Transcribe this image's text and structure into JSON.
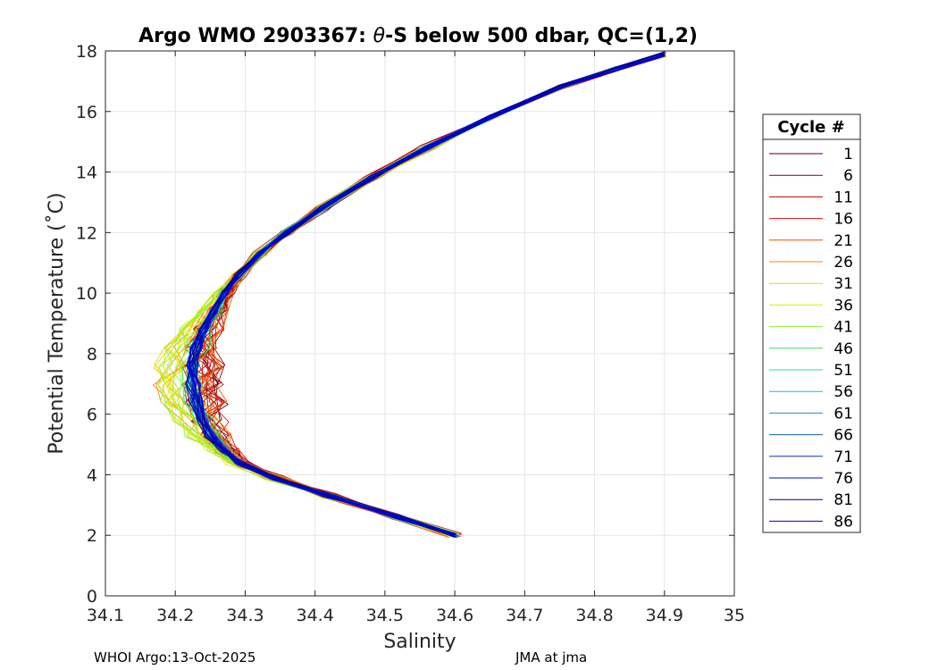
{
  "chart_data": {
    "type": "line",
    "title_prefix": "Argo WMO 2903367: ",
    "title_theta": "θ",
    "title_suffix": "-S below 500 dbar,  QC=(1,2)",
    "xlabel": "Salinity",
    "ylabel": "Potential Temperature (˚C)",
    "xlim": [
      34.1,
      35.0
    ],
    "ylim": [
      0,
      18
    ],
    "xticks": [
      "34.1",
      "34.2",
      "34.3",
      "34.4",
      "34.5",
      "34.6",
      "34.7",
      "34.8",
      "34.9",
      "35"
    ],
    "yticks": [
      "0",
      "2",
      "4",
      "6",
      "8",
      "10",
      "12",
      "14",
      "16",
      "18"
    ],
    "grid": true,
    "legend": {
      "title": "Cycle #",
      "placement": "right",
      "entries": [
        "1",
        "6",
        "11",
        "16",
        "21",
        "26",
        "31",
        "36",
        "41",
        "46",
        "51",
        "56",
        "61",
        "66",
        "71",
        "76",
        "81",
        "86"
      ],
      "colors": [
        "#5c0000",
        "#8a0000",
        "#c00000",
        "#e01010",
        "#f04a00",
        "#f08c00",
        "#f0d000",
        "#d8f000",
        "#90f030",
        "#40e060",
        "#20e0b0",
        "#10c0e0",
        "#1090d0",
        "#1060b0",
        "#1030d0",
        "#0010c0",
        "#000080",
        "#0000d0"
      ]
    },
    "series_color_order": [
      "#5c0000",
      "#8a0000",
      "#c00000",
      "#e01010",
      "#f04a00",
      "#f08c00",
      "#f0d000",
      "#d8f000",
      "#90f030",
      "#40e060",
      "#20e0b0",
      "#10c0e0",
      "#1090d0",
      "#1060b0",
      "#1030d0",
      "#0010c0",
      "#000080",
      "#0000d0"
    ],
    "mean_profile": [
      [
        34.6,
        2.0
      ],
      [
        34.52,
        2.6
      ],
      [
        34.42,
        3.3
      ],
      [
        34.34,
        3.9
      ],
      [
        34.29,
        4.4
      ],
      [
        34.27,
        4.8
      ],
      [
        34.25,
        5.3
      ],
      [
        34.24,
        5.8
      ],
      [
        34.23,
        6.4
      ],
      [
        34.225,
        7.0
      ],
      [
        34.225,
        7.6
      ],
      [
        34.23,
        8.2
      ],
      [
        34.24,
        8.8
      ],
      [
        34.255,
        9.4
      ],
      [
        34.27,
        10.0
      ],
      [
        34.29,
        10.6
      ],
      [
        34.32,
        11.3
      ],
      [
        34.36,
        12.0
      ],
      [
        34.41,
        12.8
      ],
      [
        34.48,
        13.8
      ],
      [
        34.56,
        14.8
      ],
      [
        34.65,
        15.8
      ],
      [
        34.75,
        16.8
      ],
      [
        34.83,
        17.4
      ],
      [
        34.9,
        17.9
      ]
    ]
  },
  "footer": {
    "left": "WHOI Argo:13-Oct-2025",
    "right": "JMA at jma"
  }
}
